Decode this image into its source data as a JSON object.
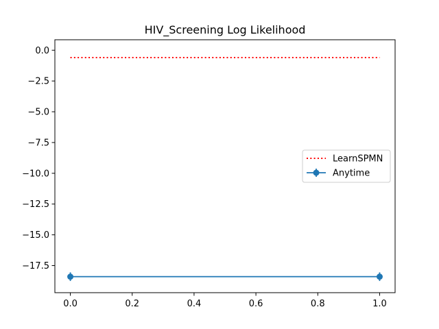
{
  "chart_data": {
    "type": "line",
    "title": "HIV_Screening Log Likelihood",
    "xlabel": "",
    "ylabel": "",
    "xlim": [
      -0.05,
      1.05
    ],
    "ylim": [
      -19.7,
      0.85
    ],
    "xticks": [
      0.0,
      0.2,
      0.4,
      0.6,
      0.8,
      1.0
    ],
    "xtick_labels": [
      "0.0",
      "0.2",
      "0.4",
      "0.6",
      "0.8",
      "1.0"
    ],
    "yticks": [
      0.0,
      -2.5,
      -5.0,
      -7.5,
      -10.0,
      -12.5,
      -15.0,
      -17.5
    ],
    "ytick_labels": [
      "0.0",
      "−2.5",
      "−5.0",
      "−7.5",
      "−10.0",
      "−12.5",
      "−15.0",
      "−17.5"
    ],
    "grid": false,
    "legend_position": "center-right",
    "series": [
      {
        "name": "LearnSPMN",
        "style": "dotted",
        "color": "#ff0000",
        "x": [
          0.0,
          1.0
        ],
        "y": [
          -0.6,
          -0.6
        ]
      },
      {
        "name": "Anytime",
        "style": "solid-with-markers-errorbars",
        "color": "#1f77b4",
        "x": [
          0.0,
          1.0
        ],
        "y": [
          -18.4,
          -18.4
        ],
        "yerr": [
          0.35,
          0.35
        ]
      }
    ]
  }
}
